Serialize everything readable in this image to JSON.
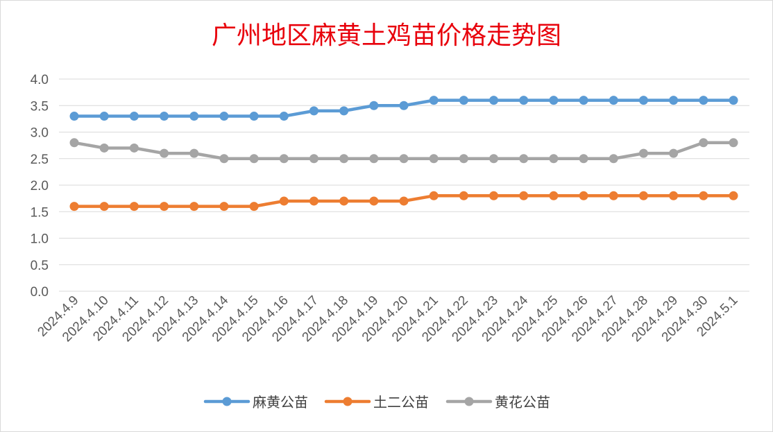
{
  "chart_data": {
    "type": "line",
    "title": "广州地区麻黄土鸡苗价格走势图",
    "xlabel": "",
    "ylabel": "",
    "x": [
      "2024.4.9",
      "2024.4.10",
      "2024.4.11",
      "2024.4.12",
      "2024.4.13",
      "2024.4.14",
      "2024.4.15",
      "2024.4.16",
      "2024.4.17",
      "2024.4.18",
      "2024.4.19",
      "2024.4.20",
      "2024.4.21",
      "2024.4.22",
      "2024.4.23",
      "2024.4.24",
      "2024.4.25",
      "2024.4.26",
      "2024.4.27",
      "2024.4.28",
      "2024.4.29",
      "2024.4.30",
      "2024.5.1"
    ],
    "yticks": [
      "4.0",
      "3.5",
      "3.0",
      "2.5",
      "2.0",
      "1.5",
      "1.0",
      "0.5",
      "0.0"
    ],
    "ylim": [
      0,
      4
    ],
    "grid": true,
    "legend_position": "bottom",
    "series": [
      {
        "name": "麻黄公苗",
        "color": "#5b9bd5",
        "values": [
          3.3,
          3.3,
          3.3,
          3.3,
          3.3,
          3.3,
          3.3,
          3.3,
          3.4,
          3.4,
          3.5,
          3.5,
          3.6,
          3.6,
          3.6,
          3.6,
          3.6,
          3.6,
          3.6,
          3.6,
          3.6,
          3.6,
          3.6
        ]
      },
      {
        "name": "土二公苗",
        "color": "#ed7d31",
        "values": [
          1.6,
          1.6,
          1.6,
          1.6,
          1.6,
          1.6,
          1.6,
          1.7,
          1.7,
          1.7,
          1.7,
          1.7,
          1.8,
          1.8,
          1.8,
          1.8,
          1.8,
          1.8,
          1.8,
          1.8,
          1.8,
          1.8,
          1.8
        ]
      },
      {
        "name": "黄花公苗",
        "color": "#a5a5a5",
        "values": [
          2.8,
          2.7,
          2.7,
          2.6,
          2.6,
          2.5,
          2.5,
          2.5,
          2.5,
          2.5,
          2.5,
          2.5,
          2.5,
          2.5,
          2.5,
          2.5,
          2.5,
          2.5,
          2.5,
          2.6,
          2.6,
          2.8,
          2.8
        ]
      }
    ]
  }
}
